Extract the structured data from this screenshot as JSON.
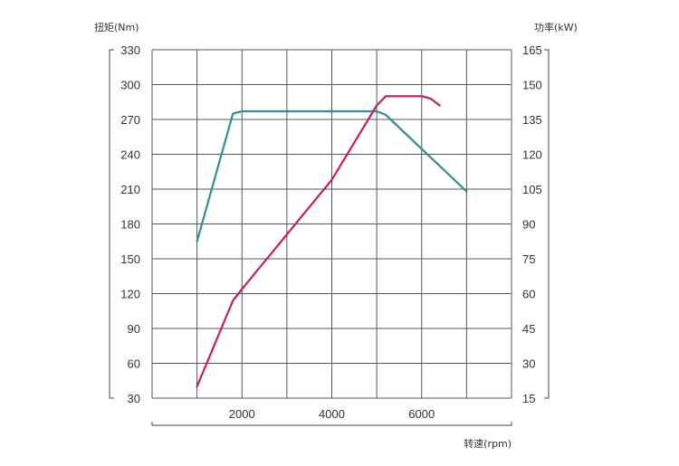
{
  "chart_data": {
    "type": "line",
    "left_axis_label": "扭矩(Nm)",
    "right_axis_label": "功率(kW)",
    "xlabel": "转速(rpm)",
    "xlim": [
      0,
      8000
    ],
    "ylim_left": [
      30,
      330
    ],
    "ylim_right": [
      15,
      165
    ],
    "x_ticks": [
      "2000",
      "4000",
      "6000"
    ],
    "x_tick_values": [
      2000,
      4000,
      6000
    ],
    "y_left_ticks": [
      "330",
      "300",
      "270",
      "240",
      "210",
      "180",
      "150",
      "120",
      "90",
      "60",
      "30"
    ],
    "y_right_ticks": [
      "165",
      "150",
      "135",
      "120",
      "105",
      "90",
      "75",
      "60",
      "45",
      "30",
      "15"
    ],
    "grid": true,
    "series": [
      {
        "axis": "left",
        "color": "#2a8f96",
        "x": [
          1000,
          1800,
          2000,
          5000,
          5200,
          7000
        ],
        "y": [
          165,
          275,
          277,
          277,
          274,
          208
        ]
      },
      {
        "axis": "right",
        "color": "#c4204f",
        "x": [
          1000,
          1800,
          2000,
          4000,
          5000,
          5200,
          6000,
          6200,
          6400
        ],
        "y": [
          20,
          57,
          62,
          109,
          141,
          145,
          145,
          144,
          141
        ]
      }
    ]
  }
}
